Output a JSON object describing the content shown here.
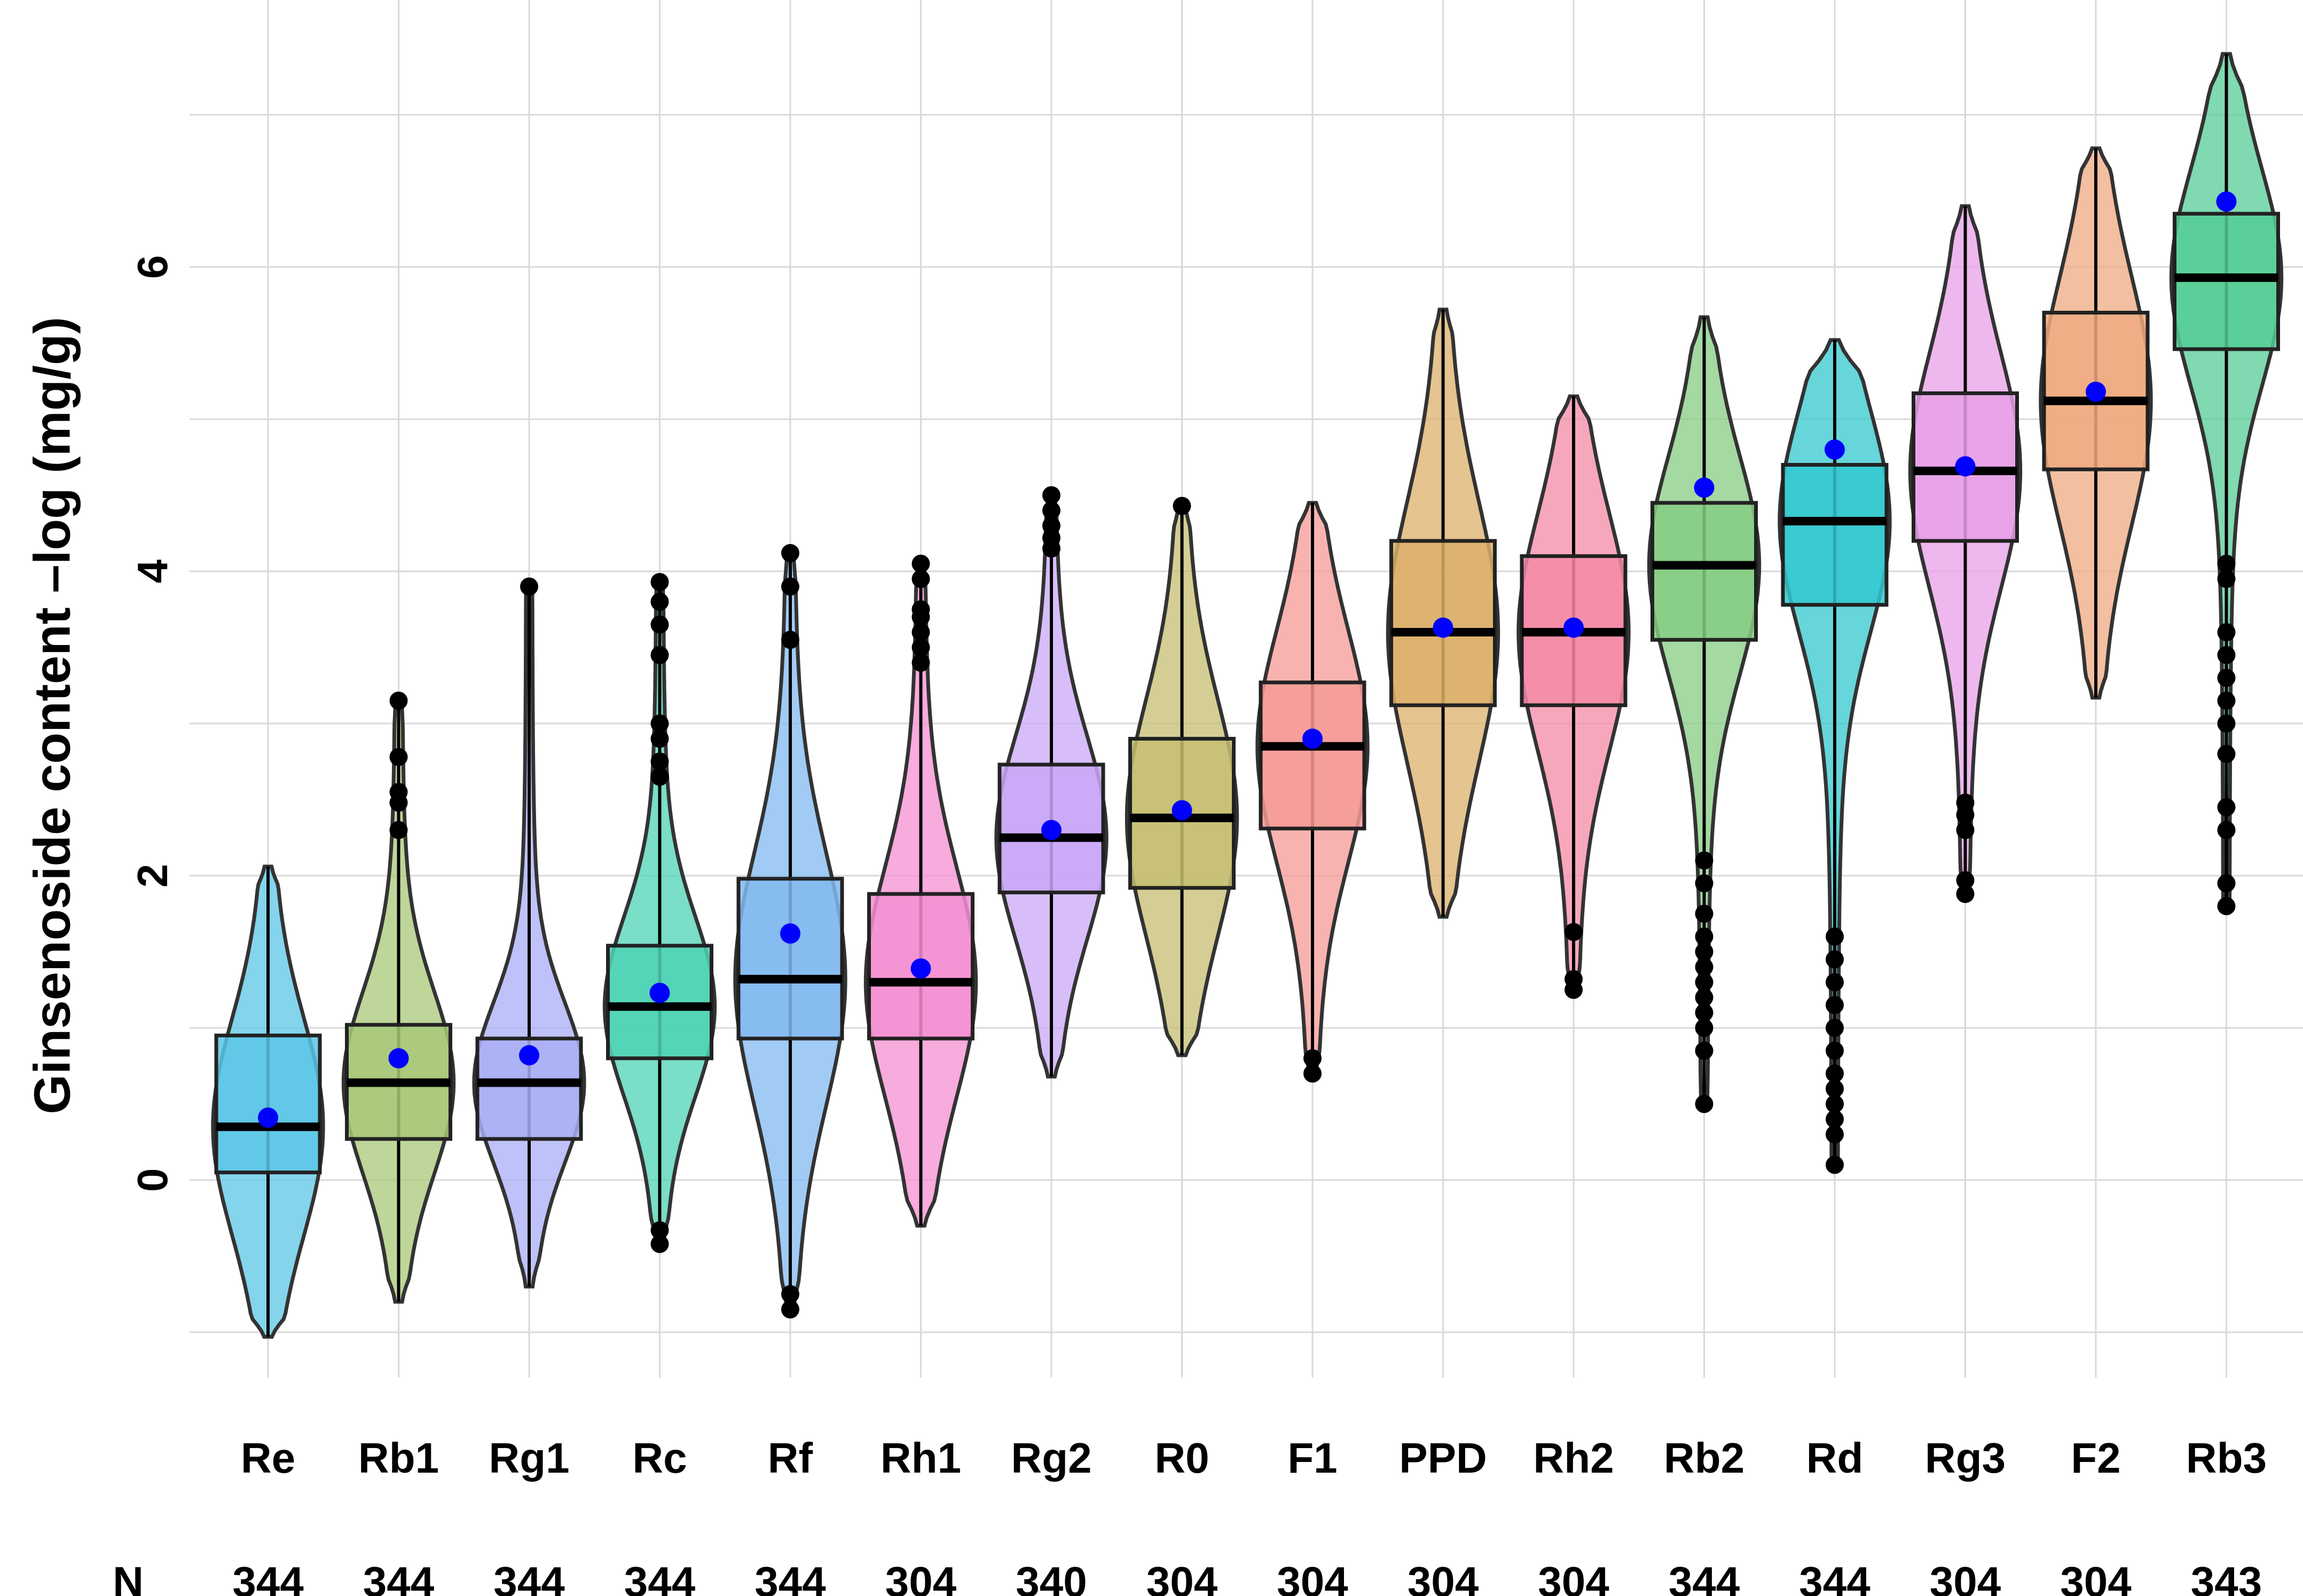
{
  "chart_data": {
    "type": "violin-box",
    "title": "",
    "xlabel": "",
    "ylabel": "Ginsenoside content –log (mg/g)",
    "ylim": [
      -1.2,
      7.5
    ],
    "yticks": [
      0,
      2,
      4,
      6
    ],
    "grid": true,
    "n_row_label": "N",
    "mean_color": "#0000ff",
    "categories": [
      "Re",
      "Rb1",
      "Rg1",
      "Rc",
      "Rf",
      "Rh1",
      "Rg2",
      "R0",
      "F1",
      "PPD",
      "Rh2",
      "Rb2",
      "Rd",
      "Rg3",
      "F2",
      "Rb3"
    ],
    "series": [
      {
        "name": "Re",
        "n": "344",
        "color": "#5bc5e6",
        "min": -1.03,
        "max": 2.06,
        "q1": 0.05,
        "median": 0.35,
        "q3": 0.95,
        "mean": 0.41,
        "outliers": []
      },
      {
        "name": "Rb1",
        "n": "344",
        "color": "#a8c878",
        "min": -0.8,
        "max": 3.15,
        "q1": 0.27,
        "median": 0.64,
        "q3": 1.02,
        "mean": 0.8,
        "outliers": [
          2.3,
          2.48,
          2.55,
          2.78,
          3.15
        ]
      },
      {
        "name": "Rg1",
        "n": "344",
        "color": "#a9aef5",
        "min": -0.7,
        "max": 3.9,
        "q1": 0.27,
        "median": 0.64,
        "q3": 0.93,
        "mean": 0.82,
        "outliers": [
          3.9
        ]
      },
      {
        "name": "Rc",
        "n": "344",
        "color": "#4dd3b5",
        "min": -0.42,
        "max": 3.93,
        "q1": 0.8,
        "median": 1.14,
        "q3": 1.54,
        "mean": 1.23,
        "outliers": [
          -0.42,
          -0.33,
          2.65,
          2.75,
          2.9,
          3.0,
          3.45,
          3.65,
          3.8,
          3.93
        ]
      },
      {
        "name": "Rf",
        "n": "344",
        "color": "#82baf0",
        "min": -0.85,
        "max": 4.12,
        "q1": 0.93,
        "median": 1.32,
        "q3": 1.98,
        "mean": 1.62,
        "outliers": [
          -0.85,
          -0.75,
          3.55,
          3.9,
          4.12
        ]
      },
      {
        "name": "Rh1",
        "n": "304",
        "color": "#f58fd2",
        "min": -0.3,
        "max": 4.05,
        "q1": 0.93,
        "median": 1.3,
        "q3": 1.88,
        "mean": 1.39,
        "outliers": [
          3.4,
          3.5,
          3.6,
          3.7,
          3.75,
          3.95,
          4.05
        ]
      },
      {
        "name": "Rg2",
        "n": "340",
        "color": "#c9a8f7",
        "min": 0.68,
        "max": 4.5,
        "q1": 1.89,
        "median": 2.25,
        "q3": 2.73,
        "mean": 2.3,
        "outliers": [
          4.15,
          4.22,
          4.3,
          4.4,
          4.5
        ]
      },
      {
        "name": "R0",
        "n": "304",
        "color": "#c5be72",
        "min": 0.82,
        "max": 4.43,
        "q1": 1.92,
        "median": 2.38,
        "q3": 2.9,
        "mean": 2.43,
        "outliers": [
          4.43
        ]
      },
      {
        "name": "F1",
        "n": "304",
        "color": "#f59a96",
        "min": 0.7,
        "max": 4.45,
        "q1": 2.31,
        "median": 2.85,
        "q3": 3.27,
        "mean": 2.9,
        "outliers": [
          0.7,
          0.8
        ]
      },
      {
        "name": "PPD",
        "n": "304",
        "color": "#dcb06a",
        "min": 1.73,
        "max": 5.72,
        "q1": 3.12,
        "median": 3.6,
        "q3": 4.2,
        "mean": 3.63,
        "outliers": []
      },
      {
        "name": "Rh2",
        "n": "304",
        "color": "#f48aa5",
        "min": 1.25,
        "max": 5.15,
        "q1": 3.12,
        "median": 3.6,
        "q3": 4.1,
        "mean": 3.63,
        "outliers": [
          1.25,
          1.32,
          1.63
        ]
      },
      {
        "name": "Rb2",
        "n": "344",
        "color": "#86cc83",
        "min": 0.5,
        "max": 5.67,
        "q1": 3.55,
        "median": 4.04,
        "q3": 4.45,
        "mean": 4.55,
        "outliers": [
          0.5,
          0.85,
          1.0,
          1.1,
          1.2,
          1.3,
          1.4,
          1.5,
          1.6,
          1.75,
          1.95,
          2.1
        ]
      },
      {
        "name": "Rd",
        "n": "344",
        "color": "#33c8cf",
        "min": 0.1,
        "max": 5.52,
        "q1": 3.78,
        "median": 4.33,
        "q3": 4.7,
        "mean": 4.8,
        "outliers": [
          0.1,
          0.3,
          0.4,
          0.5,
          0.6,
          0.7,
          0.85,
          1.0,
          1.15,
          1.3,
          1.45,
          1.6
        ]
      },
      {
        "name": "Rg3",
        "n": "304",
        "color": "#e8a0e8",
        "min": 1.88,
        "max": 6.4,
        "q1": 4.2,
        "median": 4.66,
        "q3": 5.17,
        "mean": 4.69,
        "outliers": [
          1.88,
          1.97,
          2.3,
          2.4,
          2.48
        ]
      },
      {
        "name": "F2",
        "n": "304",
        "color": "#eeaa80",
        "min": 3.17,
        "max": 6.78,
        "q1": 4.67,
        "median": 5.12,
        "q3": 5.7,
        "mean": 5.18,
        "outliers": []
      },
      {
        "name": "Rb3",
        "n": "343",
        "color": "#55cc95",
        "min": 1.78,
        "max": 7.4,
        "q1": 5.46,
        "median": 5.93,
        "q3": 6.35,
        "mean": 6.43,
        "outliers": [
          1.8,
          1.95,
          2.3,
          2.45,
          2.8,
          3.0,
          3.15,
          3.3,
          3.45,
          3.6,
          3.95,
          4.05
        ]
      }
    ]
  }
}
